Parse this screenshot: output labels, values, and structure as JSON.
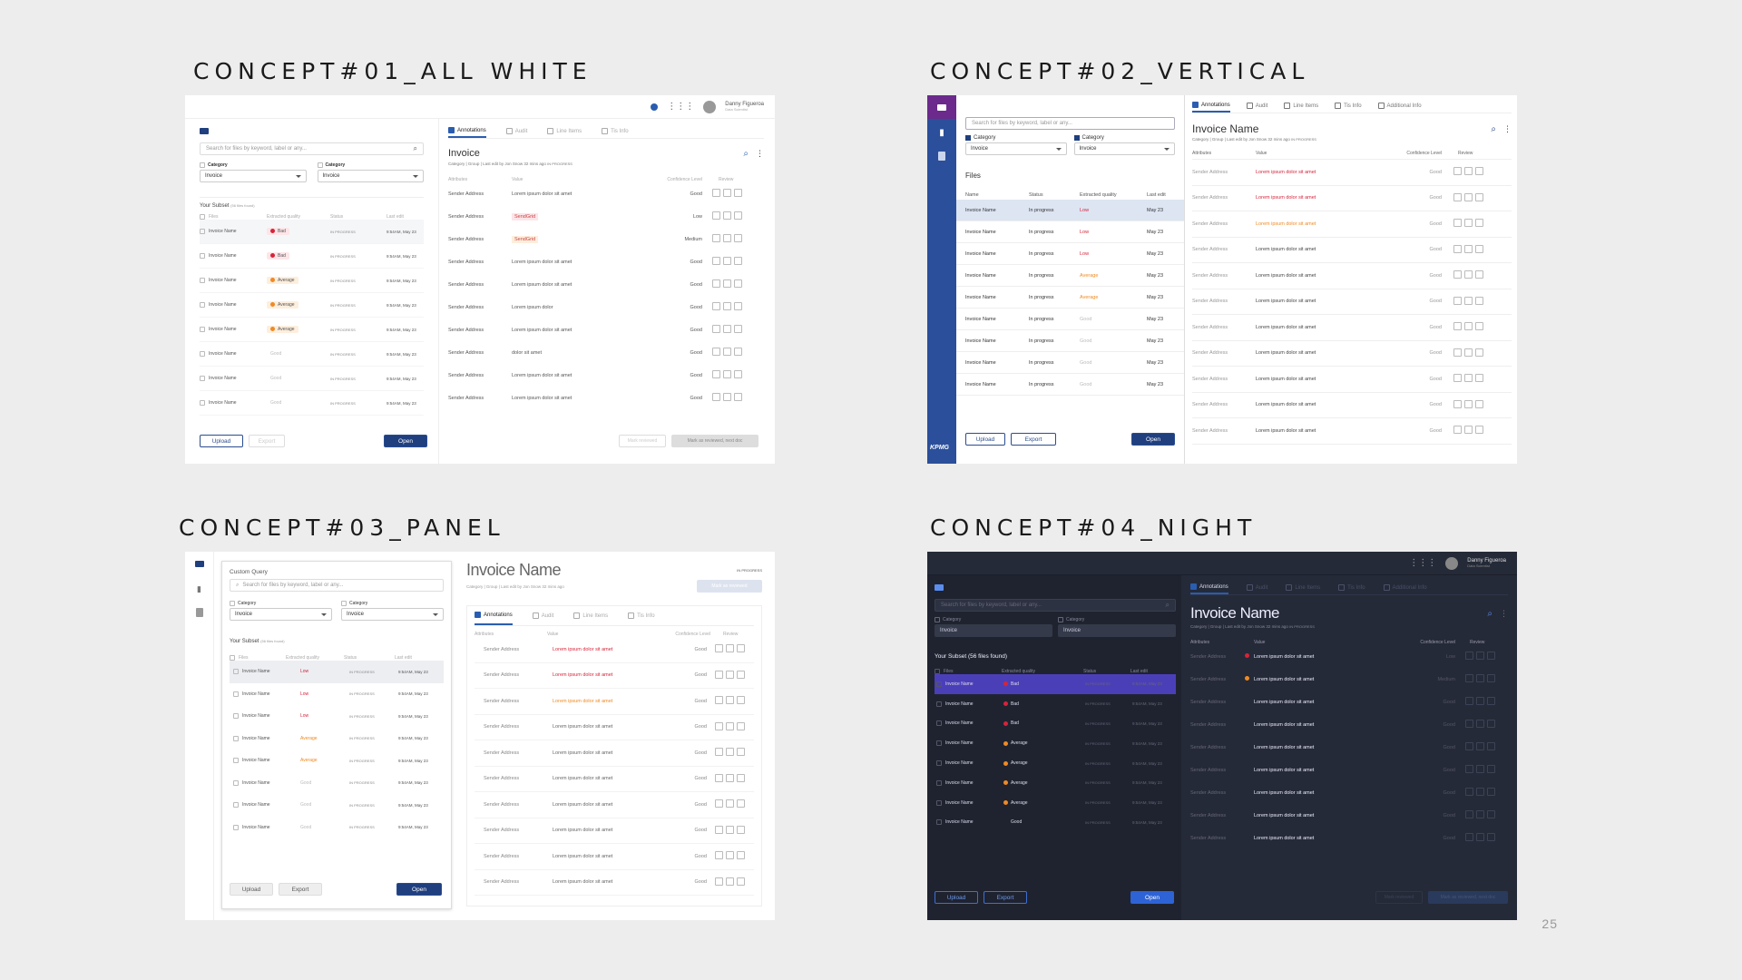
{
  "page_number": "25",
  "concepts": [
    {
      "id": "c1",
      "title": "CONCEPT#01_ALL WHITE"
    },
    {
      "id": "c2",
      "title": "CONCEPT#02_VERTICAL"
    },
    {
      "id": "c3",
      "title": "CONCEPT#03_PANEL"
    },
    {
      "id": "c4",
      "title": "CONCEPT#04_NIGHT"
    }
  ],
  "common": {
    "user_name": "Danny Figueroa",
    "user_role": "Data Scientist",
    "search_placeholder": "Search for files by keyword, label or any...",
    "category_label": "Category",
    "category_value": "Invoice",
    "tabs": [
      "Annotations",
      "Audit",
      "Line Items",
      "Tis Info",
      "Additional Info"
    ],
    "doc_meta": "Category | Group | Last edit by Jon Snow 32 mins ago",
    "status_in_progress": "IN PROGRESS",
    "attr_headers": [
      "Attributes",
      "Value",
      "Confidence Level",
      "Review"
    ],
    "file_headers": [
      "Files",
      "Extracted quality",
      "Status",
      "Last edit"
    ],
    "upload_label": "Upload",
    "export_label": "Export",
    "open_label": "Open",
    "mark_reviewed": "Mark reviewed",
    "mark_reviewed_next": "Mark as reviewed, next doc",
    "mark_as_reviewed": "Mark as reviewed",
    "kpmg_logo": "KPMG"
  },
  "c1": {
    "doc_title": "Invoice",
    "subset_title": "Your Subset",
    "subset_count": "(56 files found)",
    "files": [
      {
        "name": "Invoice Name",
        "quality": "Bad",
        "status": "IN PROGRESS",
        "edit": "9:54AM, May 23"
      },
      {
        "name": "Invoice Name",
        "quality": "Bad",
        "status": "IN PROGRESS",
        "edit": "9:54AM, May 23"
      },
      {
        "name": "Invoice Name",
        "quality": "Average",
        "status": "IN PROGRESS",
        "edit": "9:54AM, May 23"
      },
      {
        "name": "Invoice Name",
        "quality": "Average",
        "status": "IN PROGRESS",
        "edit": "9:54AM, May 23"
      },
      {
        "name": "Invoice Name",
        "quality": "Average",
        "status": "IN PROGRESS",
        "edit": "9:54AM, May 23"
      },
      {
        "name": "Invoice Name",
        "quality": "Good",
        "status": "IN PROGRESS",
        "edit": "9:54AM, May 23"
      },
      {
        "name": "Invoice Name",
        "quality": "Good",
        "status": "IN PROGRESS",
        "edit": "9:54AM, May 23"
      },
      {
        "name": "Invoice Name",
        "quality": "Good",
        "status": "IN PROGRESS",
        "edit": "9:54AM, May 23"
      }
    ],
    "attrs": [
      {
        "attr": "Sender Address",
        "value": "Lorem ipsum dolor sit amet",
        "conf": "Good"
      },
      {
        "attr": "Sender Address",
        "value": "SendGrid",
        "conf": "Low"
      },
      {
        "attr": "Sender Address",
        "value": "SendGrid",
        "conf": "Medium"
      },
      {
        "attr": "Sender Address",
        "value": "Lorem ipsum dolor sit amet",
        "conf": "Good"
      },
      {
        "attr": "Sender Address",
        "value": "Lorem ipsum dolor sit amet",
        "conf": "Good"
      },
      {
        "attr": "Sender Address",
        "value": "Lorem ipsum dolor",
        "conf": "Good"
      },
      {
        "attr": "Sender Address",
        "value": "Lorem ipsum dolor sit amet",
        "conf": "Good"
      },
      {
        "attr": "Sender Address",
        "value": "dolor sit amet",
        "conf": "Good"
      },
      {
        "attr": "Sender Address",
        "value": "Lorem ipsum dolor sit amet",
        "conf": "Good"
      },
      {
        "attr": "Sender Address",
        "value": "Lorem ipsum dolor sit amet",
        "conf": "Good"
      }
    ]
  },
  "c2": {
    "doc_title": "Invoice Name",
    "files_title": "Files",
    "file_headers": [
      "Name",
      "Status",
      "Extracted quality",
      "Last edit"
    ],
    "files": [
      {
        "name": "Invoice Name",
        "status": "In progress",
        "quality": "Low",
        "edit": "May 23"
      },
      {
        "name": "Invoice Name",
        "status": "In progress",
        "quality": "Low",
        "edit": "May 23"
      },
      {
        "name": "Invoice Name",
        "status": "In progress",
        "quality": "Low",
        "edit": "May 23"
      },
      {
        "name": "Invoice Name",
        "status": "In progress",
        "quality": "Average",
        "edit": "May 23"
      },
      {
        "name": "Invoice Name",
        "status": "In progress",
        "quality": "Average",
        "edit": "May 23"
      },
      {
        "name": "Invoice Name",
        "status": "In progress",
        "quality": "Good",
        "edit": "May 23"
      },
      {
        "name": "Invoice Name",
        "status": "In progress",
        "quality": "Good",
        "edit": "May 23"
      },
      {
        "name": "Invoice Name",
        "status": "In progress",
        "quality": "Good",
        "edit": "May 23"
      },
      {
        "name": "Invoice Name",
        "status": "In progress",
        "quality": "Good",
        "edit": "May 23"
      }
    ],
    "attrs": [
      {
        "attr": "Sender Address",
        "value": "Lorem ipsum dolor sit amet",
        "conf": "Good",
        "flag": "red"
      },
      {
        "attr": "Sender Address",
        "value": "Lorem ipsum dolor sit amet",
        "conf": "Good",
        "flag": "red"
      },
      {
        "attr": "Sender Address",
        "value": "Lorem ipsum dolor sit amet",
        "conf": "Good",
        "flag": "orange"
      },
      {
        "attr": "Sender Address",
        "value": "Lorem ipsum dolor sit amet",
        "conf": "Good",
        "flag": ""
      },
      {
        "attr": "Sender Address",
        "value": "Lorem ipsum dolor sit amet",
        "conf": "Good",
        "flag": ""
      },
      {
        "attr": "Sender Address",
        "value": "Lorem ipsum dolor sit amet",
        "conf": "Good",
        "flag": ""
      },
      {
        "attr": "Sender Address",
        "value": "Lorem ipsum dolor sit amet",
        "conf": "Good",
        "flag": ""
      },
      {
        "attr": "Sender Address",
        "value": "Lorem ipsum dolor sit amet",
        "conf": "Good",
        "flag": ""
      },
      {
        "attr": "Sender Address",
        "value": "Lorem ipsum dolor sit amet",
        "conf": "Good",
        "flag": ""
      },
      {
        "attr": "Sender Address",
        "value": "Lorem ipsum dolor sit amet",
        "conf": "Good",
        "flag": ""
      },
      {
        "attr": "Sender Address",
        "value": "Lorem ipsum dolor sit amet",
        "conf": "Good",
        "flag": ""
      }
    ]
  },
  "c3": {
    "query_title": "Custom Query",
    "doc_title": "Invoice Name",
    "subset_title": "Your Subset",
    "subset_count": "(56 files found)",
    "files": [
      {
        "name": "Invoice Name",
        "quality": "Low",
        "status": "IN PROGRESS",
        "edit": "9:54AM, May 23"
      },
      {
        "name": "Invoice Name",
        "quality": "Low",
        "status": "IN PROGRESS",
        "edit": "9:54AM, May 23"
      },
      {
        "name": "Invoice Name",
        "quality": "Low",
        "status": "IN PROGRESS",
        "edit": "9:54AM, May 23"
      },
      {
        "name": "Invoice Name",
        "quality": "Average",
        "status": "IN PROGRESS",
        "edit": "9:54AM, May 23"
      },
      {
        "name": "Invoice Name",
        "quality": "Average",
        "status": "IN PROGRESS",
        "edit": "9:54AM, May 23"
      },
      {
        "name": "Invoice Name",
        "quality": "Good",
        "status": "IN PROGRESS",
        "edit": "9:54AM, May 23"
      },
      {
        "name": "Invoice Name",
        "quality": "Good",
        "status": "IN PROGRESS",
        "edit": "9:54AM, May 23"
      },
      {
        "name": "Invoice Name",
        "quality": "Good",
        "status": "IN PROGRESS",
        "edit": "9:54AM, May 23"
      }
    ],
    "attrs": [
      {
        "attr": "Sender Address",
        "value": "Lorem ipsum dolor sit amet",
        "conf": "Good",
        "flag": "red"
      },
      {
        "attr": "Sender Address",
        "value": "Lorem ipsum dolor sit amet",
        "conf": "Good",
        "flag": "red"
      },
      {
        "attr": "Sender Address",
        "value": "Lorem ipsum dolor sit amet",
        "conf": "Good",
        "flag": "orange"
      },
      {
        "attr": "Sender Address",
        "value": "Lorem ipsum dolor sit amet",
        "conf": "Good",
        "flag": ""
      },
      {
        "attr": "Sender Address",
        "value": "Lorem ipsum dolor sit amet",
        "conf": "Good",
        "flag": ""
      },
      {
        "attr": "Sender Address",
        "value": "Lorem ipsum dolor sit amet",
        "conf": "Good",
        "flag": ""
      },
      {
        "attr": "Sender Address",
        "value": "Lorem ipsum dolor sit amet",
        "conf": "Good",
        "flag": ""
      },
      {
        "attr": "Sender Address",
        "value": "Lorem ipsum dolor sit amet",
        "conf": "Good",
        "flag": ""
      },
      {
        "attr": "Sender Address",
        "value": "Lorem ipsum dolor sit amet",
        "conf": "Good",
        "flag": ""
      },
      {
        "attr": "Sender Address",
        "value": "Lorem ipsum dolor sit amet",
        "conf": "Good",
        "flag": ""
      }
    ]
  },
  "c4": {
    "doc_title": "Invoice Name",
    "subset_title": "Your Subset (56 files found)",
    "files": [
      {
        "name": "Invoice Name",
        "quality": "Bad",
        "status": "IN PROGRESS",
        "edit": "9:54AM, May 23"
      },
      {
        "name": "Invoice Name",
        "quality": "Bad",
        "status": "IN PROGRESS",
        "edit": "9:54AM, May 23"
      },
      {
        "name": "Invoice Name",
        "quality": "Bad",
        "status": "IN PROGRESS",
        "edit": "9:54AM, May 23"
      },
      {
        "name": "Invoice Name",
        "quality": "Average",
        "status": "IN PROGRESS",
        "edit": "9:54AM, May 23"
      },
      {
        "name": "Invoice Name",
        "quality": "Average",
        "status": "IN PROGRESS",
        "edit": "9:54AM, May 23"
      },
      {
        "name": "Invoice Name",
        "quality": "Average",
        "status": "IN PROGRESS",
        "edit": "9:54AM, May 23"
      },
      {
        "name": "Invoice Name",
        "quality": "Average",
        "status": "IN PROGRESS",
        "edit": "9:54AM, May 23"
      },
      {
        "name": "Invoice Name",
        "quality": "Good",
        "status": "IN PROGRESS",
        "edit": "9:54AM, May 23"
      }
    ],
    "attrs": [
      {
        "attr": "Sender Address",
        "value": "Lorem ipsum dolor sit amet",
        "conf": "Low",
        "flag": "red"
      },
      {
        "attr": "Sender Address",
        "value": "Lorem ipsum dolor sit amet",
        "conf": "Medium",
        "flag": "orange"
      },
      {
        "attr": "Sender Address",
        "value": "Lorem ipsum dolor sit amet",
        "conf": "Good",
        "flag": ""
      },
      {
        "attr": "Sender Address",
        "value": "Lorem ipsum dolor sit amet",
        "conf": "Good",
        "flag": ""
      },
      {
        "attr": "Sender Address",
        "value": "Lorem ipsum dolor sit amet",
        "conf": "Good",
        "flag": ""
      },
      {
        "attr": "Sender Address",
        "value": "Lorem ipsum dolor sit amet",
        "conf": "Good",
        "flag": ""
      },
      {
        "attr": "Sender Address",
        "value": "Lorem ipsum dolor sit amet",
        "conf": "Good",
        "flag": ""
      },
      {
        "attr": "Sender Address",
        "value": "Lorem ipsum dolor sit amet",
        "conf": "Good",
        "flag": ""
      },
      {
        "attr": "Sender Address",
        "value": "Lorem ipsum dolor sit amet",
        "conf": "Good",
        "flag": ""
      }
    ]
  },
  "colors": {
    "primary": "#1f3f7f",
    "sidebar_blue": "#2b4f9a",
    "sidebar_purple": "#6b2a8c",
    "bad": "#d6243a",
    "average": "#f08a24",
    "good": "#999999",
    "night_bg": "#252a38",
    "night_panel": "#1e2230",
    "night_highlight": "#4b3fb8"
  }
}
